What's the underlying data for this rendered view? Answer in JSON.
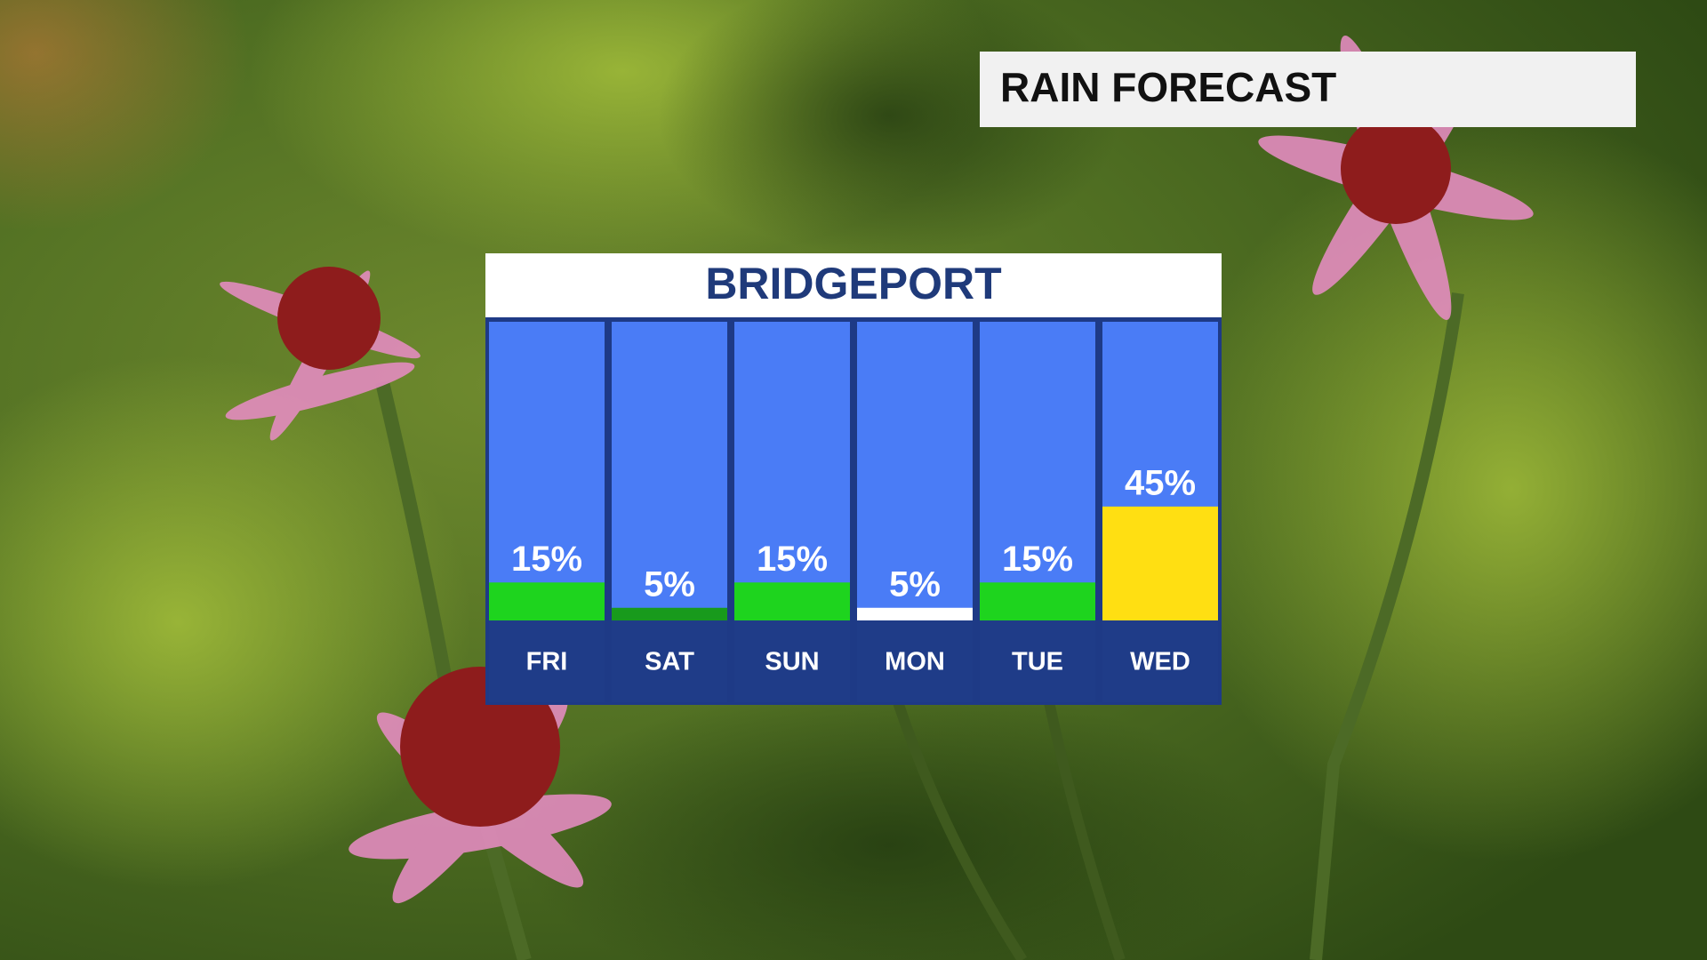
{
  "chart_data": {
    "type": "bar",
    "title": "RAIN FORECAST",
    "subtitle": "BRIDGEPORT",
    "categories": [
      "FRI",
      "SAT",
      "SUN",
      "MON",
      "TUE",
      "WED"
    ],
    "values": [
      15,
      5,
      15,
      5,
      15,
      45
    ],
    "value_labels": [
      "15%",
      "5%",
      "15%",
      "5%",
      "15%",
      "45%"
    ],
    "colors": [
      "#1ed41e",
      "#189a1c",
      "#1ed41e",
      "#ffffff",
      "#1ed41e",
      "#ffdf12"
    ],
    "ylim": [
      0,
      118
    ]
  }
}
